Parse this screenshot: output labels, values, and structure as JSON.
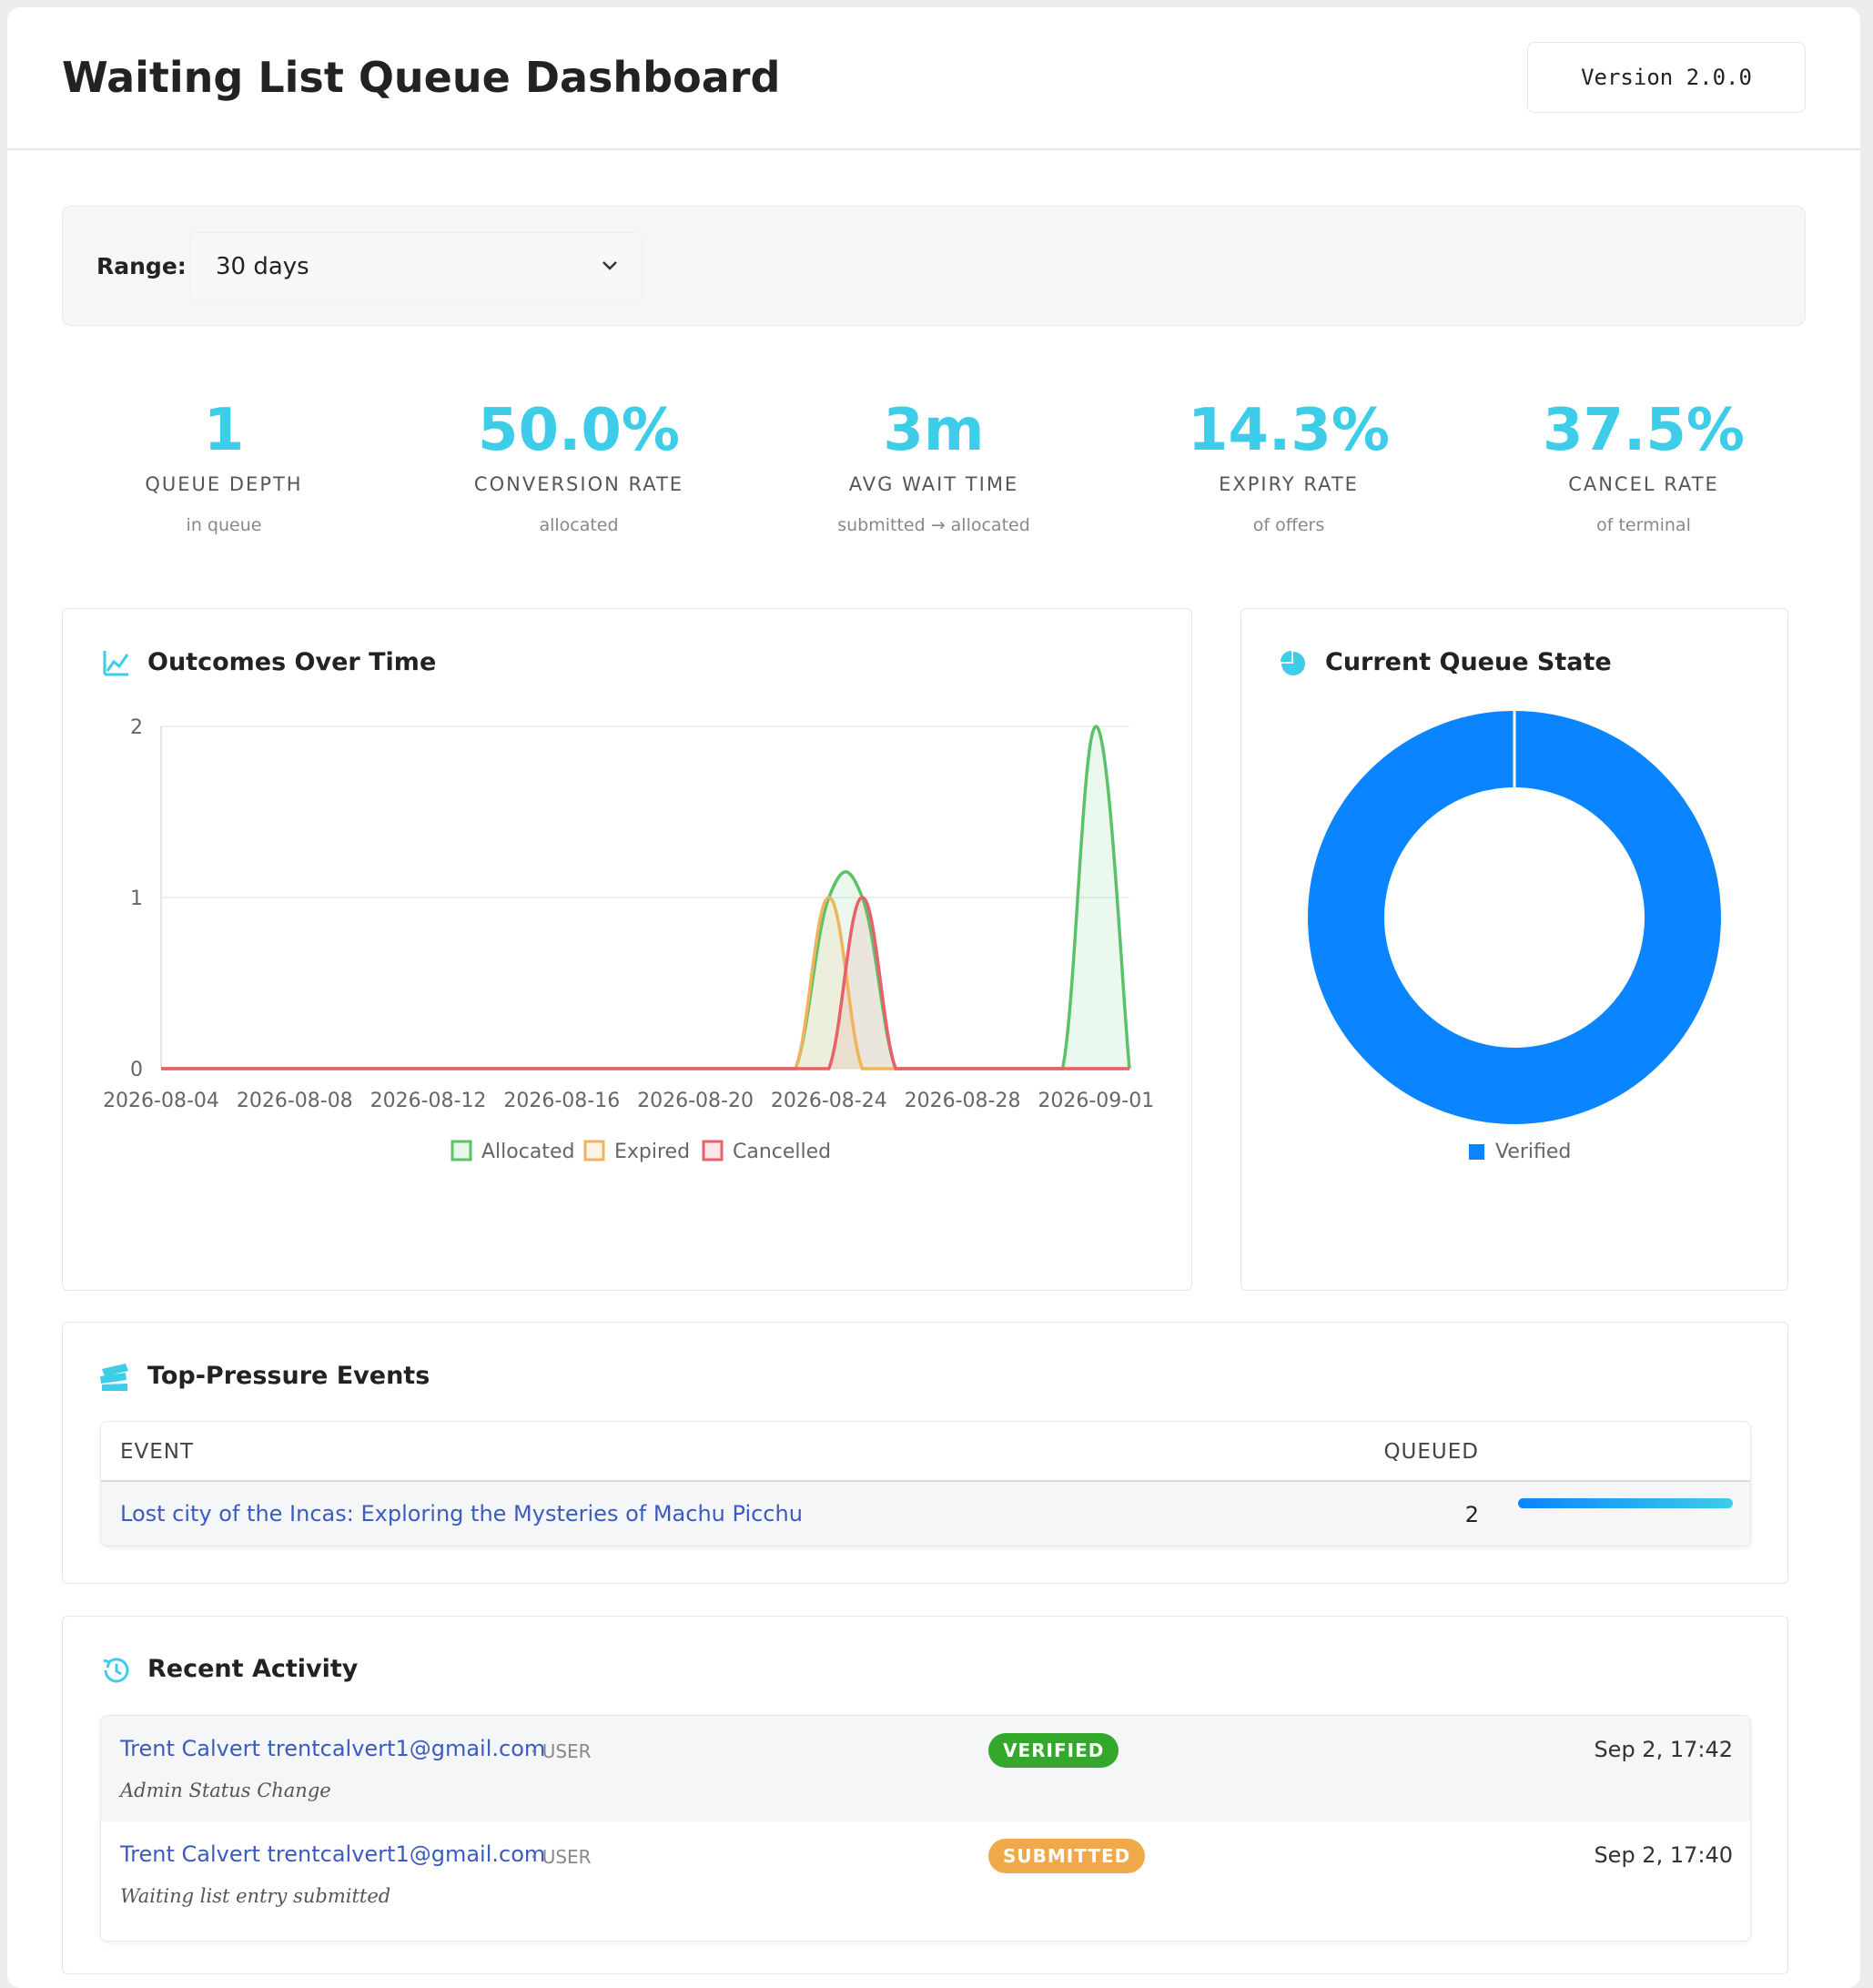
{
  "header": {
    "title": "Waiting List Queue Dashboard",
    "version": "Version 2.0.0"
  },
  "filter": {
    "label": "Range:",
    "selected": "30 days"
  },
  "kpis": [
    {
      "value": "1",
      "label": "QUEUE DEPTH",
      "sub": "in queue"
    },
    {
      "value": "50.0%",
      "label": "CONVERSION RATE",
      "sub": "allocated"
    },
    {
      "value": "3m",
      "label": "AVG WAIT TIME",
      "sub": "submitted → allocated"
    },
    {
      "value": "14.3%",
      "label": "EXPIRY RATE",
      "sub": "of offers"
    },
    {
      "value": "37.5%",
      "label": "CANCEL RATE",
      "sub": "of terminal"
    }
  ],
  "chart_data": [
    {
      "type": "line",
      "title": "Outcomes Over Time",
      "categories": [
        "2026-08-04",
        null,
        null,
        null,
        "2026-08-08",
        null,
        null,
        null,
        "2026-08-12",
        null,
        null,
        null,
        "2026-08-16",
        null,
        null,
        null,
        "2026-08-20",
        null,
        null,
        null,
        "2026-08-24",
        null,
        null,
        null,
        "2026-08-28",
        null,
        null,
        null,
        "2026-09-01",
        null
      ],
      "series": [
        {
          "name": "Allocated",
          "color": "#5cc26a",
          "values": [
            0,
            0,
            0,
            0,
            0,
            0,
            0,
            0,
            0,
            0,
            0,
            0,
            0,
            0,
            0,
            0,
            0,
            0,
            0,
            0,
            1,
            1,
            0,
            0,
            0,
            0,
            0,
            0,
            2,
            0
          ]
        },
        {
          "name": "Expired",
          "color": "#f2b35e",
          "values": [
            0,
            0,
            0,
            0,
            0,
            0,
            0,
            0,
            0,
            0,
            0,
            0,
            0,
            0,
            0,
            0,
            0,
            0,
            0,
            0,
            1,
            0,
            0,
            0,
            0,
            0,
            0,
            0,
            0,
            0
          ]
        },
        {
          "name": "Cancelled",
          "color": "#e8606a",
          "values": [
            0,
            0,
            0,
            0,
            0,
            0,
            0,
            0,
            0,
            0,
            0,
            0,
            0,
            0,
            0,
            0,
            0,
            0,
            0,
            0,
            0,
            1,
            0,
            0,
            0,
            0,
            0,
            0,
            0,
            0
          ]
        }
      ],
      "ylim": [
        0,
        2
      ],
      "yticks": [
        0,
        1,
        2
      ],
      "grid": true,
      "legend": "bottom"
    },
    {
      "type": "doughnut",
      "title": "Current Queue State",
      "categories": [
        "Verified"
      ],
      "values": [
        1
      ],
      "colors": [
        "#0a84ff"
      ],
      "legend": "bottom"
    }
  ],
  "top_events": {
    "title": "Top-Pressure Events",
    "columns": [
      "EVENT",
      "QUEUED"
    ],
    "rows": [
      {
        "event": "Lost city of the Incas: Exploring the Mysteries of Machu Picchu",
        "queued": 2
      }
    ]
  },
  "recent_activity": {
    "title": "Recent Activity",
    "items": [
      {
        "name": "Trent Calvert trentcalvert1@gmail.com",
        "role": "· USER",
        "status": "VERIFIED",
        "status_color": "#34a82a",
        "detail": "Admin Status Change",
        "time": "Sep 2, 17:42"
      },
      {
        "name": "Trent Calvert trentcalvert1@gmail.com",
        "role": "· USER",
        "status": "SUBMITTED",
        "status_color": "#f0a94a",
        "detail": "Waiting list entry submitted",
        "time": "Sep 2, 17:40"
      }
    ]
  }
}
